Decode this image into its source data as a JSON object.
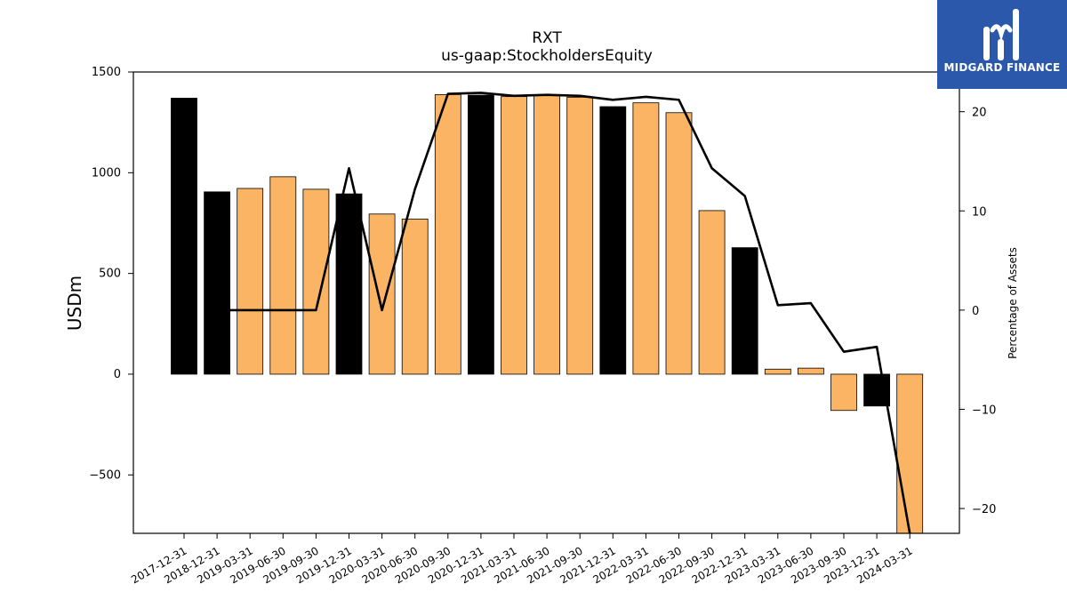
{
  "logo": {
    "text": "MIDGARD FINANCE",
    "icon": "midgard-logo-icon",
    "background": "#2b58ab"
  },
  "chart_data": {
    "type": "bar",
    "title": "RXT",
    "subtitle": "us-gaap:StockholdersEquity",
    "ylabel": "USDm",
    "y2label": "Percentage of Assets",
    "ylim": [
      -790,
      1500
    ],
    "y2lim": [
      -22.5,
      24
    ],
    "yticks": [
      -500,
      0,
      500,
      1000,
      1500
    ],
    "y2ticks": [
      -20,
      -10,
      0,
      10,
      20
    ],
    "grid": false,
    "categories": [
      "2017-12-31",
      "2018-12-31",
      "2019-03-31",
      "2019-06-30",
      "2019-09-30",
      "2019-12-31",
      "2020-03-31",
      "2020-06-30",
      "2020-09-30",
      "2020-12-31",
      "2021-03-31",
      "2021-06-30",
      "2021-09-30",
      "2021-12-31",
      "2022-03-31",
      "2022-06-30",
      "2022-09-30",
      "2022-12-31",
      "2023-03-31",
      "2023-06-30",
      "2023-09-30",
      "2023-12-31",
      "2024-03-31"
    ],
    "series": [
      {
        "type": "bar",
        "values": [
          1370,
          905,
          922,
          980,
          918,
          895,
          795,
          770,
          1388,
          1385,
          1378,
          1385,
          1375,
          1328,
          1347,
          1298,
          812,
          628,
          25,
          30,
          -180,
          -158,
          -790
        ],
        "colors": [
          "#000000",
          "#000000",
          "#fbb464",
          "#fbb464",
          "#fbb464",
          "#000000",
          "#fbb464",
          "#fbb464",
          "#fbb464",
          "#000000",
          "#fbb464",
          "#fbb464",
          "#fbb464",
          "#000000",
          "#fbb464",
          "#fbb464",
          "#fbb464",
          "#000000",
          "#fbb464",
          "#fbb464",
          "#fbb464",
          "#000000",
          "#fbb464"
        ]
      },
      {
        "type": "line",
        "axis": "right",
        "color": "#000000",
        "values": [
          null,
          0,
          0,
          0,
          0,
          14.3,
          0,
          12.2,
          21.8,
          21.9,
          21.6,
          21.7,
          21.6,
          21.2,
          21.5,
          21.2,
          14.3,
          11.5,
          0.5,
          0.7,
          -4.2,
          -3.7,
          -22.5
        ]
      }
    ]
  }
}
